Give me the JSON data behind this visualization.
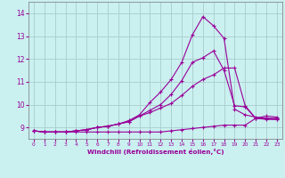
{
  "background_color": "#caf0f0",
  "grid_color": "#aacccc",
  "line_color": "#990099",
  "xlabel": "Windchill (Refroidissement éolien,°C)",
  "xlim": [
    -0.5,
    23.5
  ],
  "ylim": [
    8.5,
    14.5
  ],
  "yticks": [
    9,
    10,
    11,
    12,
    13,
    14
  ],
  "xticks": [
    0,
    1,
    2,
    3,
    4,
    5,
    6,
    7,
    8,
    9,
    10,
    11,
    12,
    13,
    14,
    15,
    16,
    17,
    18,
    19,
    20,
    21,
    22,
    23
  ],
  "series": [
    {
      "x": [
        0,
        1,
        2,
        3,
        4,
        5,
        6,
        7,
        8,
        9,
        10,
        11,
        12,
        13,
        14,
        15,
        16,
        17,
        18,
        19,
        20,
        21,
        22,
        23
      ],
      "y": [
        8.85,
        8.8,
        8.8,
        8.8,
        8.85,
        8.9,
        9.0,
        9.05,
        9.15,
        9.3,
        9.55,
        10.1,
        10.55,
        11.1,
        11.85,
        13.05,
        13.85,
        13.45,
        12.9,
        9.8,
        9.55,
        9.45,
        9.4,
        9.4
      ]
    },
    {
      "x": [
        0,
        1,
        2,
        3,
        4,
        5,
        6,
        7,
        8,
        9,
        10,
        11,
        12,
        13,
        14,
        15,
        16,
        17,
        18,
        19,
        20,
        21,
        22,
        23
      ],
      "y": [
        8.85,
        8.8,
        8.8,
        8.8,
        8.85,
        8.9,
        9.0,
        9.05,
        9.15,
        9.25,
        9.5,
        9.75,
        10.0,
        10.45,
        11.05,
        11.85,
        12.05,
        12.35,
        11.5,
        9.95,
        9.9,
        9.4,
        9.4,
        9.35
      ]
    },
    {
      "x": [
        0,
        1,
        2,
        3,
        4,
        5,
        6,
        7,
        8,
        9,
        10,
        11,
        12,
        13,
        14,
        15,
        16,
        17,
        18,
        19,
        20,
        21,
        22,
        23
      ],
      "y": [
        8.85,
        8.8,
        8.8,
        8.8,
        8.85,
        8.9,
        9.0,
        9.05,
        9.15,
        9.25,
        9.5,
        9.65,
        9.85,
        10.05,
        10.4,
        10.8,
        11.1,
        11.3,
        11.6,
        11.6,
        9.95,
        9.4,
        9.35,
        9.35
      ]
    },
    {
      "x": [
        0,
        1,
        2,
        3,
        4,
        5,
        6,
        7,
        8,
        9,
        10,
        11,
        12,
        13,
        14,
        15,
        16,
        17,
        18,
        19,
        20,
        21,
        22,
        23
      ],
      "y": [
        8.85,
        8.8,
        8.8,
        8.8,
        8.8,
        8.8,
        8.8,
        8.8,
        8.8,
        8.8,
        8.8,
        8.8,
        8.8,
        8.85,
        8.9,
        8.95,
        9.0,
        9.05,
        9.1,
        9.1,
        9.1,
        9.4,
        9.5,
        9.45
      ]
    }
  ]
}
